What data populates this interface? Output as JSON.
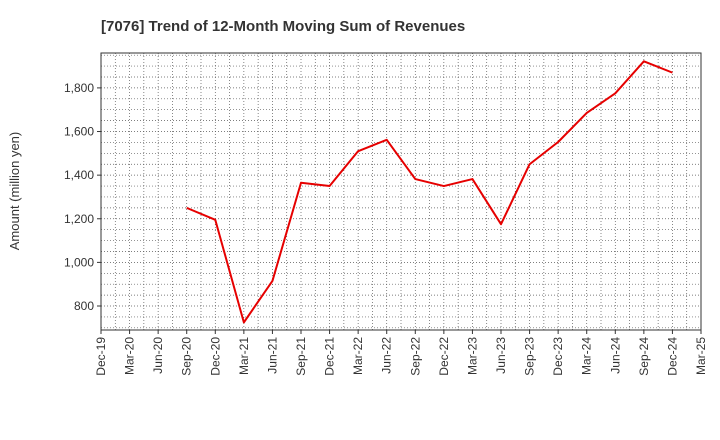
{
  "chart_data": {
    "type": "line",
    "title": "[7076]  Trend of 12-Month Moving Sum of Revenues",
    "xlabel": "",
    "ylabel": "Amount (million yen)",
    "categories": [
      "Dec-19",
      "Mar-20",
      "Jun-20",
      "Sep-20",
      "Dec-20",
      "Mar-21",
      "Jun-21",
      "Sep-21",
      "Dec-21",
      "Mar-22",
      "Jun-22",
      "Sep-22",
      "Dec-22",
      "Mar-23",
      "Jun-23",
      "Sep-23",
      "Dec-23",
      "Mar-24",
      "Jun-24",
      "Sep-24",
      "Dec-24",
      "Mar-25"
    ],
    "series": [
      {
        "color": "#e60000",
        "values": [
          null,
          null,
          null,
          1250,
          1195,
          725,
          915,
          1365,
          1350,
          1510,
          1562,
          1382,
          1350,
          1382,
          1175,
          1450,
          1552,
          1685,
          1775,
          1922,
          1870,
          null
        ]
      }
    ],
    "yticks": [
      800,
      1000,
      1200,
      1400,
      1600,
      1800
    ],
    "ylim": [
      690,
      1960
    ],
    "grid": true,
    "grid_style": "dotted",
    "legend": "none"
  }
}
